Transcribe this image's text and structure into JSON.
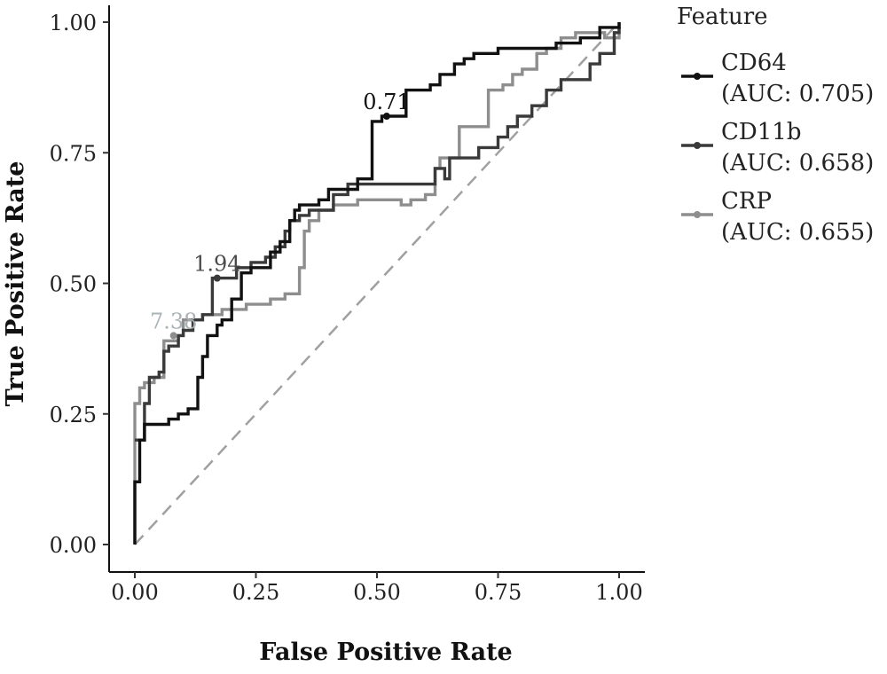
{
  "chart_data": {
    "type": "line",
    "title": "",
    "xlabel": "False Positive Rate",
    "ylabel": "True Positive Rate",
    "xlim": [
      0,
      1
    ],
    "ylim": [
      0,
      1
    ],
    "x_ticks": [
      "0.00",
      "0.25",
      "0.50",
      "0.75",
      "1.00"
    ],
    "y_ticks": [
      "0.00",
      "0.25",
      "0.50",
      "0.75",
      "1.00"
    ],
    "grid": false,
    "legend": {
      "title": "Feature",
      "placement": "right",
      "entries": [
        {
          "name": "CD64",
          "auc": "(AUC: 0.705)"
        },
        {
          "name": "CD11b",
          "auc": "(AUC: 0.658)"
        },
        {
          "name": "CRP",
          "auc": "(AUC: 0.655)"
        }
      ]
    },
    "reference_line": {
      "style": "dashed",
      "color": "#a0a0a0",
      "points": [
        [
          0,
          0
        ],
        [
          1,
          1
        ]
      ]
    },
    "series": [
      {
        "name": "CD64",
        "color": "#111111",
        "threshold_label": "0.71",
        "threshold_point": [
          0.52,
          0.82
        ],
        "points": [
          [
            0,
            0
          ],
          [
            0,
            0.12
          ],
          [
            0.01,
            0.12
          ],
          [
            0.01,
            0.2
          ],
          [
            0.02,
            0.2
          ],
          [
            0.02,
            0.23
          ],
          [
            0.07,
            0.23
          ],
          [
            0.07,
            0.24
          ],
          [
            0.09,
            0.24
          ],
          [
            0.09,
            0.25
          ],
          [
            0.11,
            0.25
          ],
          [
            0.11,
            0.26
          ],
          [
            0.13,
            0.26
          ],
          [
            0.13,
            0.32
          ],
          [
            0.14,
            0.32
          ],
          [
            0.14,
            0.36
          ],
          [
            0.15,
            0.36
          ],
          [
            0.15,
            0.4
          ],
          [
            0.17,
            0.4
          ],
          [
            0.17,
            0.42
          ],
          [
            0.18,
            0.42
          ],
          [
            0.18,
            0.43
          ],
          [
            0.2,
            0.43
          ],
          [
            0.2,
            0.47
          ],
          [
            0.22,
            0.47
          ],
          [
            0.22,
            0.52
          ],
          [
            0.24,
            0.52
          ],
          [
            0.24,
            0.53
          ],
          [
            0.28,
            0.53
          ],
          [
            0.28,
            0.56
          ],
          [
            0.3,
            0.56
          ],
          [
            0.3,
            0.58
          ],
          [
            0.32,
            0.58
          ],
          [
            0.32,
            0.62
          ],
          [
            0.33,
            0.62
          ],
          [
            0.33,
            0.64
          ],
          [
            0.34,
            0.64
          ],
          [
            0.34,
            0.65
          ],
          [
            0.38,
            0.65
          ],
          [
            0.38,
            0.66
          ],
          [
            0.4,
            0.66
          ],
          [
            0.4,
            0.68
          ],
          [
            0.46,
            0.68
          ],
          [
            0.46,
            0.7
          ],
          [
            0.49,
            0.7
          ],
          [
            0.49,
            0.81
          ],
          [
            0.51,
            0.81
          ],
          [
            0.51,
            0.82
          ],
          [
            0.56,
            0.82
          ],
          [
            0.56,
            0.87
          ],
          [
            0.61,
            0.87
          ],
          [
            0.61,
            0.88
          ],
          [
            0.63,
            0.88
          ],
          [
            0.63,
            0.9
          ],
          [
            0.66,
            0.9
          ],
          [
            0.66,
            0.92
          ],
          [
            0.68,
            0.92
          ],
          [
            0.68,
            0.93
          ],
          [
            0.7,
            0.93
          ],
          [
            0.7,
            0.94
          ],
          [
            0.75,
            0.94
          ],
          [
            0.75,
            0.95
          ],
          [
            0.87,
            0.95
          ],
          [
            0.87,
            0.96
          ],
          [
            0.92,
            0.96
          ],
          [
            0.92,
            0.97
          ],
          [
            0.96,
            0.97
          ],
          [
            0.96,
            0.99
          ],
          [
            1,
            0.99
          ],
          [
            1,
            1
          ]
        ]
      },
      {
        "name": "CD11b",
        "color": "#3a3a3a",
        "label_color": "#4b4b4b",
        "threshold_label": "1.94",
        "threshold_point": [
          0.17,
          0.51
        ],
        "points": [
          [
            0,
            0.2
          ],
          [
            0.02,
            0.2
          ],
          [
            0.02,
            0.27
          ],
          [
            0.03,
            0.27
          ],
          [
            0.03,
            0.32
          ],
          [
            0.05,
            0.32
          ],
          [
            0.05,
            0.33
          ],
          [
            0.06,
            0.33
          ],
          [
            0.06,
            0.37
          ],
          [
            0.07,
            0.37
          ],
          [
            0.07,
            0.38
          ],
          [
            0.09,
            0.38
          ],
          [
            0.09,
            0.4
          ],
          [
            0.1,
            0.4
          ],
          [
            0.1,
            0.41
          ],
          [
            0.12,
            0.41
          ],
          [
            0.12,
            0.43
          ],
          [
            0.14,
            0.43
          ],
          [
            0.14,
            0.44
          ],
          [
            0.16,
            0.44
          ],
          [
            0.16,
            0.51
          ],
          [
            0.21,
            0.51
          ],
          [
            0.21,
            0.53
          ],
          [
            0.24,
            0.53
          ],
          [
            0.24,
            0.54
          ],
          [
            0.27,
            0.54
          ],
          [
            0.27,
            0.55
          ],
          [
            0.29,
            0.55
          ],
          [
            0.29,
            0.57
          ],
          [
            0.31,
            0.57
          ],
          [
            0.31,
            0.6
          ],
          [
            0.32,
            0.6
          ],
          [
            0.32,
            0.62
          ],
          [
            0.34,
            0.62
          ],
          [
            0.34,
            0.63
          ],
          [
            0.36,
            0.63
          ],
          [
            0.36,
            0.64
          ],
          [
            0.41,
            0.64
          ],
          [
            0.41,
            0.67
          ],
          [
            0.44,
            0.67
          ],
          [
            0.44,
            0.69
          ],
          [
            0.62,
            0.69
          ],
          [
            0.62,
            0.72
          ],
          [
            0.64,
            0.72
          ],
          [
            0.64,
            0.7
          ],
          [
            0.65,
            0.7
          ],
          [
            0.65,
            0.74
          ],
          [
            0.71,
            0.74
          ],
          [
            0.71,
            0.76
          ],
          [
            0.75,
            0.76
          ],
          [
            0.75,
            0.78
          ],
          [
            0.77,
            0.78
          ],
          [
            0.77,
            0.8
          ],
          [
            0.79,
            0.8
          ],
          [
            0.79,
            0.82
          ],
          [
            0.82,
            0.82
          ],
          [
            0.82,
            0.84
          ],
          [
            0.85,
            0.84
          ],
          [
            0.85,
            0.87
          ],
          [
            0.88,
            0.87
          ],
          [
            0.88,
            0.89
          ],
          [
            0.94,
            0.89
          ],
          [
            0.94,
            0.92
          ],
          [
            0.96,
            0.92
          ],
          [
            0.96,
            0.94
          ],
          [
            0.99,
            0.94
          ],
          [
            0.99,
            0.98
          ],
          [
            1,
            0.98
          ],
          [
            1,
            1
          ]
        ]
      },
      {
        "name": "CRP",
        "color": "#8e8e8e",
        "label_color": "#a9b3b5",
        "threshold_label": "7.38",
        "threshold_point": [
          0.08,
          0.4
        ],
        "points": [
          [
            0,
            0
          ],
          [
            0,
            0.27
          ],
          [
            0.01,
            0.27
          ],
          [
            0.01,
            0.3
          ],
          [
            0.02,
            0.3
          ],
          [
            0.02,
            0.31
          ],
          [
            0.04,
            0.31
          ],
          [
            0.04,
            0.32
          ],
          [
            0.06,
            0.32
          ],
          [
            0.06,
            0.39
          ],
          [
            0.09,
            0.39
          ],
          [
            0.09,
            0.4
          ],
          [
            0.1,
            0.4
          ],
          [
            0.1,
            0.43
          ],
          [
            0.14,
            0.43
          ],
          [
            0.14,
            0.44
          ],
          [
            0.18,
            0.44
          ],
          [
            0.18,
            0.45
          ],
          [
            0.23,
            0.45
          ],
          [
            0.23,
            0.46
          ],
          [
            0.28,
            0.46
          ],
          [
            0.28,
            0.47
          ],
          [
            0.31,
            0.47
          ],
          [
            0.31,
            0.48
          ],
          [
            0.34,
            0.48
          ],
          [
            0.34,
            0.53
          ],
          [
            0.35,
            0.53
          ],
          [
            0.35,
            0.6
          ],
          [
            0.36,
            0.6
          ],
          [
            0.36,
            0.62
          ],
          [
            0.38,
            0.62
          ],
          [
            0.38,
            0.64
          ],
          [
            0.41,
            0.64
          ],
          [
            0.41,
            0.65
          ],
          [
            0.46,
            0.65
          ],
          [
            0.46,
            0.66
          ],
          [
            0.55,
            0.66
          ],
          [
            0.55,
            0.65
          ],
          [
            0.57,
            0.65
          ],
          [
            0.57,
            0.66
          ],
          [
            0.6,
            0.66
          ],
          [
            0.6,
            0.67
          ],
          [
            0.62,
            0.67
          ],
          [
            0.62,
            0.72
          ],
          [
            0.63,
            0.72
          ],
          [
            0.63,
            0.74
          ],
          [
            0.67,
            0.74
          ],
          [
            0.67,
            0.8
          ],
          [
            0.73,
            0.8
          ],
          [
            0.73,
            0.87
          ],
          [
            0.76,
            0.87
          ],
          [
            0.76,
            0.88
          ],
          [
            0.78,
            0.88
          ],
          [
            0.78,
            0.9
          ],
          [
            0.8,
            0.9
          ],
          [
            0.8,
            0.91
          ],
          [
            0.83,
            0.91
          ],
          [
            0.83,
            0.94
          ],
          [
            0.85,
            0.94
          ],
          [
            0.85,
            0.95
          ],
          [
            0.88,
            0.95
          ],
          [
            0.88,
            0.97
          ],
          [
            0.91,
            0.97
          ],
          [
            0.91,
            0.98
          ],
          [
            0.97,
            0.98
          ],
          [
            0.97,
            0.97
          ],
          [
            1,
            0.97
          ],
          [
            1,
            0.99
          ]
        ]
      }
    ]
  }
}
